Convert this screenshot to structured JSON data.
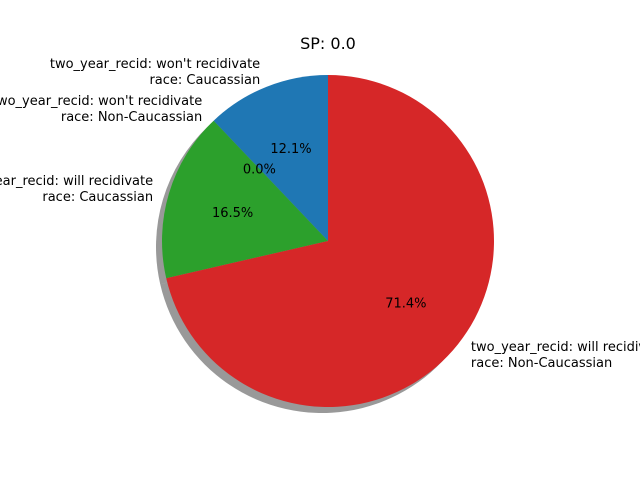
{
  "chart_data": {
    "type": "pie",
    "title": "SP: 0.0",
    "shadow": true,
    "start_angle_degrees": 90,
    "direction": "counterclockwise",
    "slices": [
      {
        "label_lines": [
          "two_year_recid: won't recidivate",
          "race: Caucassian"
        ],
        "value": 12.1,
        "pct_label": "12.1%",
        "color": "#1f77b4"
      },
      {
        "label_lines": [
          "two_year_recid: won't recidivate",
          "race: Non-Caucassian"
        ],
        "value": 0.0,
        "pct_label": "0.0%",
        "color": "#ff7f0e"
      },
      {
        "label_lines": [
          "two_year_recid: will recidivate",
          "race: Caucassian"
        ],
        "value": 16.5,
        "pct_label": "16.5%",
        "color": "#2ca02c"
      },
      {
        "label_lines": [
          "two_year_recid: will recidivate",
          "race: Non-Caucassian"
        ],
        "value": 71.4,
        "pct_label": "71.4%",
        "color": "#d62728"
      }
    ]
  }
}
